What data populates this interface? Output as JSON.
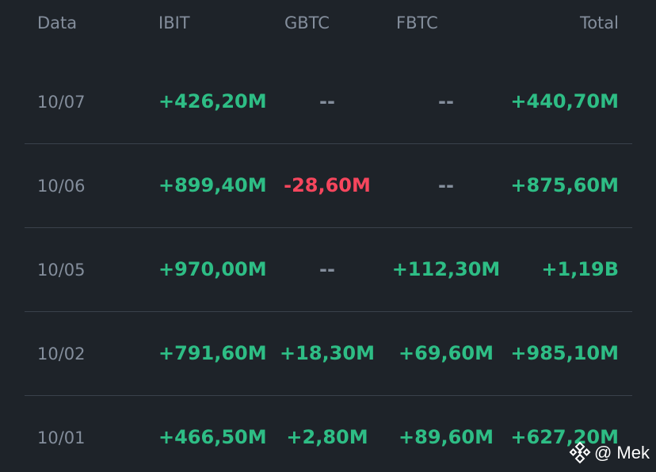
{
  "header": {
    "date": "Data",
    "ibit": "IBIT",
    "gbtc": "GBTC",
    "fbtc": "FBTC",
    "total": "Total"
  },
  "rows": [
    {
      "date": "10/07",
      "ibit": "+426,20M",
      "gbtc": "--",
      "fbtc": "--",
      "total": "+440,70M"
    },
    {
      "date": "10/06",
      "ibit": "+899,40M",
      "gbtc": "-28,60M",
      "fbtc": "--",
      "total": "+875,60M"
    },
    {
      "date": "10/05",
      "ibit": "+970,00M",
      "gbtc": "--",
      "fbtc": "+112,30M",
      "total": "+1,19B"
    },
    {
      "date": "10/02",
      "ibit": "+791,60M",
      "gbtc": "+18,30M",
      "fbtc": "+69,60M",
      "total": "+985,10M"
    },
    {
      "date": "10/01",
      "ibit": "+466,50M",
      "gbtc": "+2,80M",
      "fbtc": "+89,60M",
      "total": "+627,20M"
    }
  ],
  "watermark": {
    "text": "@ Mek",
    "logo_icon": "binance-logo-icon"
  },
  "colors": {
    "background": "#1e2329",
    "positive": "#2ebd85",
    "negative": "#f6465d",
    "muted": "#848e9c"
  }
}
